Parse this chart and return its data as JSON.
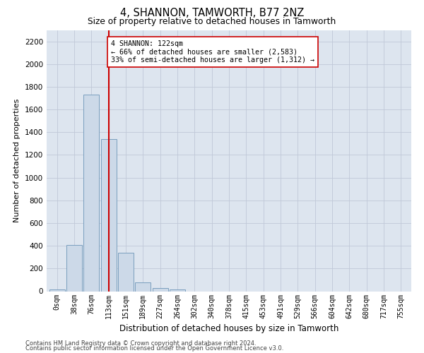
{
  "title": "4, SHANNON, TAMWORTH, B77 2NZ",
  "subtitle": "Size of property relative to detached houses in Tamworth",
  "xlabel": "Distribution of detached houses by size in Tamworth",
  "ylabel": "Number of detached properties",
  "bar_labels": [
    "0sqm",
    "38sqm",
    "76sqm",
    "113sqm",
    "151sqm",
    "189sqm",
    "227sqm",
    "264sqm",
    "302sqm",
    "340sqm",
    "378sqm",
    "415sqm",
    "453sqm",
    "491sqm",
    "529sqm",
    "566sqm",
    "604sqm",
    "642sqm",
    "680sqm",
    "717sqm",
    "755sqm"
  ],
  "bar_values": [
    15,
    410,
    1730,
    1340,
    340,
    75,
    30,
    15,
    0,
    0,
    0,
    0,
    0,
    0,
    0,
    0,
    0,
    0,
    0,
    0,
    0
  ],
  "bar_color": "#ccd9e8",
  "bar_edge_color": "#7a9fbe",
  "grid_color": "#c0c8d8",
  "background_color": "#dde5ef",
  "vline_x": 3.0,
  "vline_color": "#cc0000",
  "annotation_text": "4 SHANNON: 122sqm\n← 66% of detached houses are smaller (2,583)\n33% of semi-detached houses are larger (1,312) →",
  "annotation_box_color": "#ffffff",
  "annotation_box_edge": "#cc0000",
  "ylim": [
    0,
    2300
  ],
  "yticks": [
    0,
    200,
    400,
    600,
    800,
    1000,
    1200,
    1400,
    1600,
    1800,
    2000,
    2200
  ],
  "footnote1": "Contains HM Land Registry data © Crown copyright and database right 2024.",
  "footnote2": "Contains public sector information licensed under the Open Government Licence v3.0."
}
